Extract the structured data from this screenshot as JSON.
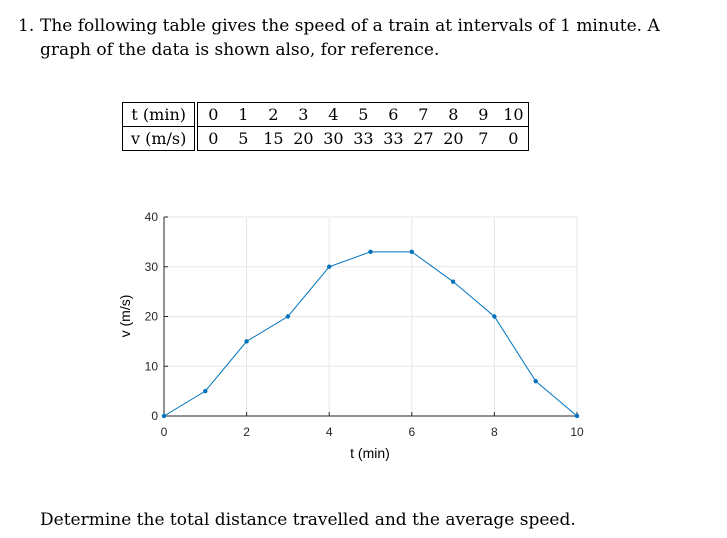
{
  "problem": {
    "number": "1.",
    "text": "The following table gives the speed of a train at intervals of 1 minute. A graph of the data is shown also, for reference."
  },
  "table": {
    "row1_label": "t (min)",
    "row2_label": "v (m/s)",
    "t_values": [
      "0",
      "1",
      "2",
      "3",
      "4",
      "5",
      "6",
      "7",
      "8",
      "9",
      "10"
    ],
    "v_values": [
      "0",
      "5",
      "15",
      "20",
      "30",
      "33",
      "33",
      "27",
      "20",
      "7",
      "0"
    ]
  },
  "chart_data": {
    "type": "line",
    "x": [
      0,
      1,
      2,
      3,
      4,
      5,
      6,
      7,
      8,
      9,
      10
    ],
    "series": [
      {
        "values": [
          0,
          5,
          15,
          20,
          30,
          33,
          33,
          27,
          20,
          7,
          0
        ]
      }
    ],
    "xlabel": "t (min)",
    "ylabel": "v (m/s)",
    "xlim": [
      0,
      10
    ],
    "ylim": [
      0,
      40
    ],
    "xticks": [
      0,
      2,
      4,
      6,
      8,
      10
    ],
    "yticks": [
      0,
      10,
      20,
      30,
      40
    ],
    "grid": true,
    "line_color": "#0072BD",
    "grid_color": "#e6e6e6"
  },
  "question": "Determine the total distance travelled and the average speed."
}
